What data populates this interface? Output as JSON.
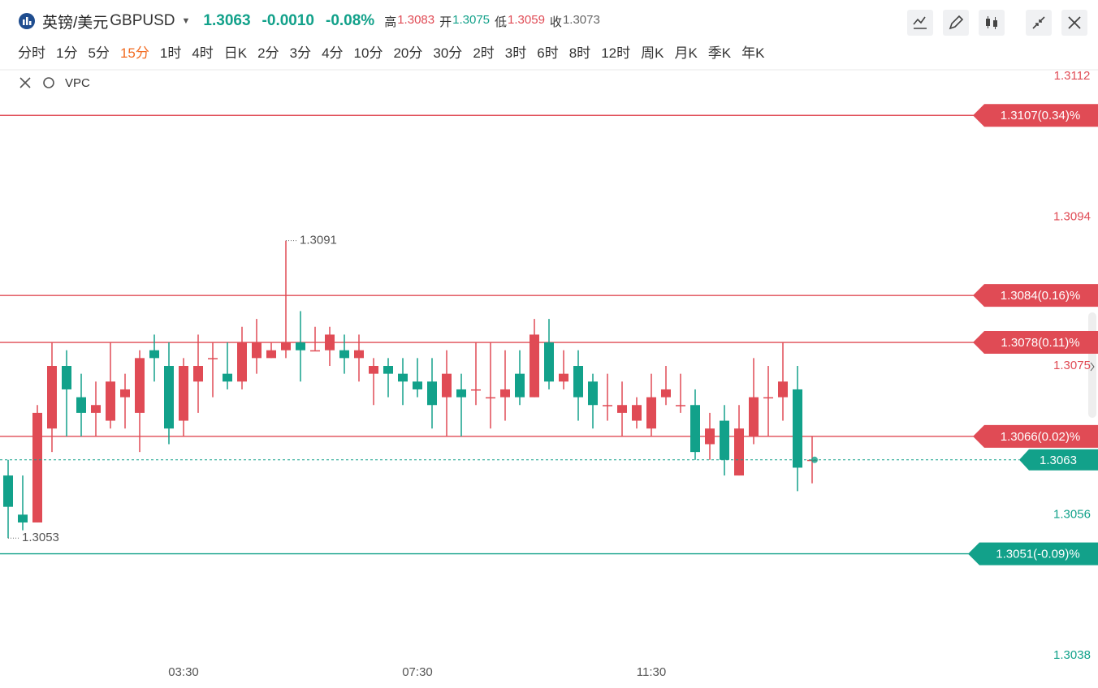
{
  "header": {
    "name": "英镑/美元",
    "symbol": "GBPUSD",
    "price": "1.3063",
    "change": "-0.0010",
    "change_pct": "-0.08%",
    "stats": [
      {
        "label": "高",
        "value": "1.3083"
      },
      {
        "label": "开",
        "value": "1.3075"
      },
      {
        "label": "低",
        "value": "1.3059"
      },
      {
        "label": "收",
        "value": "1.3073"
      }
    ]
  },
  "intervals": {
    "items": [
      "分时",
      "1分",
      "5分",
      "15分",
      "1时",
      "4时",
      "日K",
      "2分",
      "3分",
      "4分",
      "10分",
      "20分",
      "30分",
      "2时",
      "3时",
      "6时",
      "8时",
      "12时",
      "周K",
      "月K",
      "季K",
      "年K"
    ],
    "active": "15分"
  },
  "indicator": "VPC",
  "chart_data": {
    "type": "candlestick",
    "up_color": "#e04b55",
    "down_color": "#12a18a",
    "categories": [
      null,
      null,
      null,
      null,
      null,
      null,
      null,
      null,
      null,
      null,
      null,
      null,
      "03:30",
      null,
      null,
      null,
      null,
      null,
      null,
      null,
      null,
      null,
      null,
      null,
      null,
      null,
      null,
      null,
      "07:30",
      null,
      null,
      null,
      null,
      null,
      null,
      null,
      null,
      null,
      null,
      null,
      null,
      null,
      null,
      null,
      "11:30",
      null,
      null,
      null,
      null,
      null,
      null,
      null,
      null,
      null,
      null,
      null
    ],
    "open": [
      1.3061,
      1.3056,
      1.3055,
      1.3067,
      1.3075,
      1.3071,
      1.3069,
      1.3068,
      1.3071,
      1.3069,
      1.3077,
      1.3075,
      1.3068,
      1.3073,
      1.3076,
      1.3074,
      1.3073,
      1.3076,
      1.3076,
      1.3077,
      1.3078,
      1.3077,
      1.3077,
      1.3077,
      1.3076,
      1.3074,
      1.3075,
      1.3074,
      1.3073,
      1.3073,
      1.3071,
      1.3072,
      1.3072,
      1.3071,
      1.3071,
      1.3074,
      1.3071,
      1.3078,
      1.3073,
      1.3075,
      1.3073,
      1.307,
      1.3069,
      1.3068,
      1.3067,
      1.3071,
      1.307,
      1.307,
      1.3065,
      1.3068,
      1.3061,
      1.3066,
      1.3071,
      1.3071,
      1.3072,
      1.3063
    ],
    "high": [
      1.3063,
      1.3061,
      1.307,
      1.3078,
      1.3077,
      1.3074,
      1.3073,
      1.3078,
      1.3074,
      1.3077,
      1.3079,
      1.3078,
      1.3076,
      1.3079,
      1.3078,
      1.3078,
      1.308,
      1.3081,
      1.3078,
      1.3091,
      1.3082,
      1.308,
      1.308,
      1.3079,
      1.3079,
      1.3076,
      1.3076,
      1.3076,
      1.3076,
      1.3076,
      1.3077,
      1.3074,
      1.3078,
      1.3078,
      1.3077,
      1.3077,
      1.3081,
      1.3081,
      1.3077,
      1.3077,
      1.3074,
      1.3074,
      1.3073,
      1.3071,
      1.3074,
      1.3075,
      1.3074,
      1.3072,
      1.3069,
      1.307,
      1.307,
      1.3076,
      1.3075,
      1.3078,
      1.3075,
      1.3066
    ],
    "low": [
      1.3053,
      1.3054,
      1.3055,
      1.3064,
      1.3066,
      1.3066,
      1.3066,
      1.3067,
      1.3067,
      1.3064,
      1.3073,
      1.3065,
      1.3066,
      1.3069,
      1.3071,
      1.3072,
      1.3072,
      1.3074,
      1.3076,
      1.3076,
      1.3073,
      1.3077,
      1.3075,
      1.3074,
      1.3073,
      1.307,
      1.3071,
      1.307,
      1.3071,
      1.3067,
      1.3066,
      1.3066,
      1.307,
      1.3067,
      1.3068,
      1.307,
      1.3071,
      1.3072,
      1.3072,
      1.3068,
      1.3067,
      1.3068,
      1.3066,
      1.3067,
      1.3066,
      1.307,
      1.3069,
      1.3063,
      1.3063,
      1.3061,
      1.3061,
      1.3065,
      1.3066,
      1.3068,
      1.3059,
      1.306
    ],
    "close": [
      1.3057,
      1.3055,
      1.3069,
      1.3075,
      1.3072,
      1.3069,
      1.307,
      1.3073,
      1.3072,
      1.3076,
      1.3076,
      1.3067,
      1.3075,
      1.3075,
      1.3076,
      1.3073,
      1.3078,
      1.3078,
      1.3077,
      1.3078,
      1.3077,
      1.3077,
      1.3079,
      1.3076,
      1.3077,
      1.3075,
      1.3074,
      1.3073,
      1.3072,
      1.307,
      1.3074,
      1.3071,
      1.3072,
      1.3071,
      1.3072,
      1.3071,
      1.3079,
      1.3073,
      1.3074,
      1.3071,
      1.307,
      1.307,
      1.307,
      1.307,
      1.3071,
      1.3072,
      1.307,
      1.3064,
      1.3067,
      1.3063,
      1.3067,
      1.3071,
      1.3071,
      1.3073,
      1.3062,
      1.3063
    ],
    "ylim": [
      1.3038,
      1.3112
    ],
    "yticks": [
      1.3112,
      1.3094,
      1.3075,
      1.3056,
      1.3038
    ],
    "levels": [
      {
        "value": 1.3107,
        "label": "1.3107(0.34)%",
        "color": "#e04b55"
      },
      {
        "value": 1.3084,
        "label": "1.3084(0.16)%",
        "color": "#e04b55"
      },
      {
        "value": 1.3078,
        "label": "1.3078(0.11)%",
        "color": "#e04b55"
      },
      {
        "value": 1.3066,
        "label": "1.3066(0.02)%",
        "color": "#e04b55"
      },
      {
        "value": 1.3051,
        "label": "1.3051(-0.09)%",
        "color": "#12a18a"
      }
    ],
    "current": {
      "value": 1.3063,
      "color": "#12a18a"
    },
    "annotations": [
      {
        "kind": "high",
        "value": 1.3091
      },
      {
        "kind": "low",
        "value": 1.3053
      }
    ]
  }
}
